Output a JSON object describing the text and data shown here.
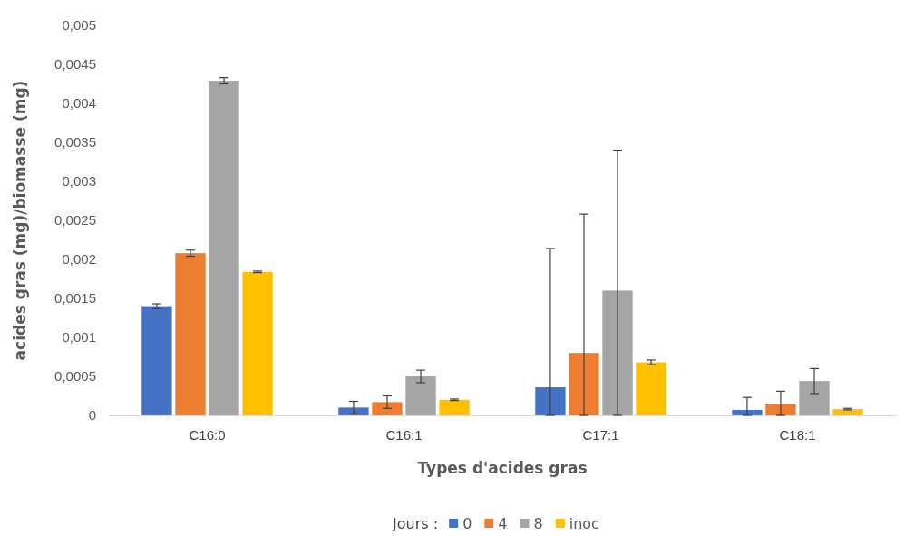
{
  "chart_data": {
    "type": "bar",
    "xlabel": "Types d'acides gras",
    "ylabel": "acides gras (mg)/biomasse (mg)",
    "legend_title": "Jours :",
    "legend": "bottom",
    "grid": false,
    "categories": [
      "C16:0",
      "C16:1",
      "C17:1",
      "C18:1"
    ],
    "ylim": [
      0,
      0.005
    ],
    "yticks": [
      {
        "value": 0,
        "label": "0"
      },
      {
        "value": 0.0005,
        "label": "0,0005"
      },
      {
        "value": 0.001,
        "label": "0,001"
      },
      {
        "value": 0.0015,
        "label": "0,0015"
      },
      {
        "value": 0.002,
        "label": "0,002"
      },
      {
        "value": 0.0025,
        "label": "0,0025"
      },
      {
        "value": 0.003,
        "label": "0,003"
      },
      {
        "value": 0.0035,
        "label": "0,0035"
      },
      {
        "value": 0.004,
        "label": "0,004"
      },
      {
        "value": 0.0045,
        "label": "0,0045"
      },
      {
        "value": 0.005,
        "label": "0,005"
      }
    ],
    "series": [
      {
        "name": "0",
        "color": "#4472c4",
        "values": [
          0.0014,
          0.0001,
          0.00036,
          7e-05
        ],
        "errors": [
          3e-05,
          8e-05,
          [
            0,
            0.00214
          ],
          [
            0,
            0.00023
          ]
        ]
      },
      {
        "name": "4",
        "color": "#ed7d31",
        "values": [
          0.00208,
          0.00017,
          0.0008,
          0.00015
        ],
        "errors": [
          4e-05,
          8e-05,
          [
            0,
            0.00258
          ],
          [
            0,
            0.00031
          ]
        ]
      },
      {
        "name": "8",
        "color": "#a5a5a5",
        "values": [
          0.00429,
          0.0005,
          0.0016,
          0.00044
        ],
        "errors": [
          4e-05,
          8e-05,
          [
            0,
            0.0034
          ],
          0.00016
        ]
      },
      {
        "name": "inoc",
        "color": "#ffc000",
        "values": [
          0.00184,
          0.0002,
          0.00068,
          8e-05
        ],
        "errors": [
          1e-05,
          1e-05,
          3e-05,
          1e-05
        ]
      }
    ]
  }
}
